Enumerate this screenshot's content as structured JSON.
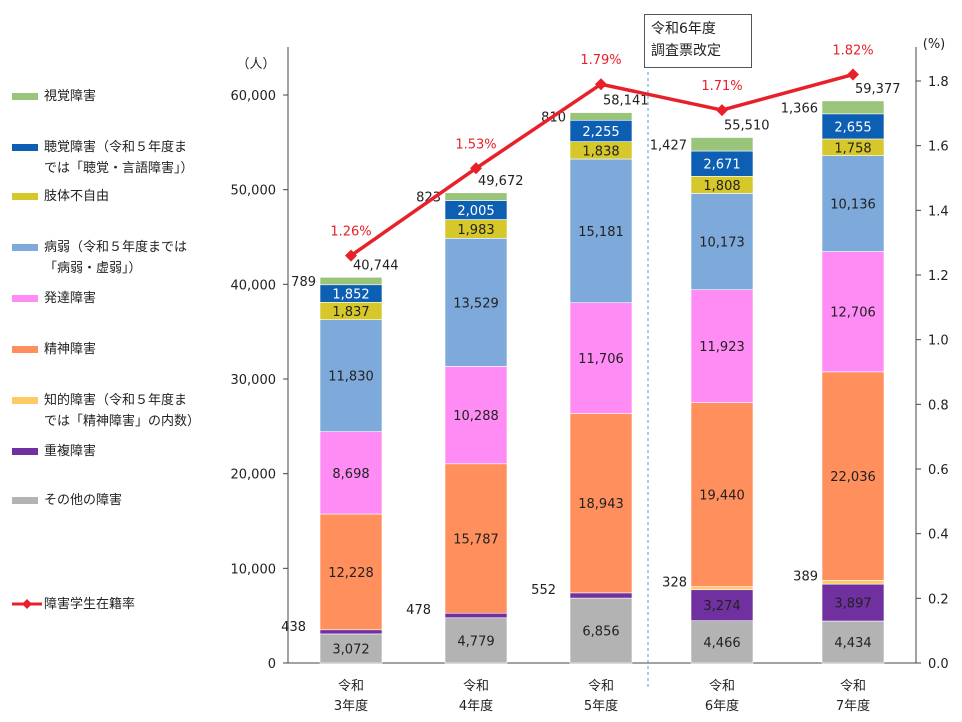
{
  "chart_data": {
    "type": "bar",
    "stacked": true,
    "categories": [
      [
        "令和",
        "3年度"
      ],
      [
        "令和",
        "4年度"
      ],
      [
        "令和",
        "5年度"
      ],
      [
        "令和",
        "6年度"
      ],
      [
        "令和",
        "7年度"
      ]
    ],
    "y_unit": "（人）",
    "y2_unit": "(%)",
    "ylim": [
      0,
      60000
    ],
    "yticks": [
      "0",
      "10,000",
      "20,000",
      "30,000",
      "40,000",
      "50,000",
      "60,000"
    ],
    "y2lim": [
      0,
      1.8
    ],
    "y2ticks": [
      "0.0",
      "0.2",
      "0.4",
      "0.6",
      "0.8",
      "1.0",
      "1.2",
      "1.4",
      "1.6",
      "1.8"
    ],
    "series": [
      {
        "name": "その他の障害",
        "color": "#b3b3b3",
        "values": [
          3072,
          4779,
          6856,
          4466,
          4434
        ],
        "labels": [
          "3,072",
          "4,779",
          "6,856",
          "4,466",
          "4,434"
        ]
      },
      {
        "name": "重複障害",
        "color": "#7030a0",
        "values": [
          438,
          478,
          552,
          3274,
          3897
        ],
        "labels": [
          "438",
          "478",
          "552",
          "3,274",
          "3,897"
        ]
      },
      {
        "name": "知的障害",
        "color": "#ffc966",
        "values": [
          0,
          0,
          0,
          328,
          389
        ],
        "labels": [
          "",
          "",
          "",
          "328",
          "389"
        ]
      },
      {
        "name": "精神障害",
        "color": "#ff8f5c",
        "values": [
          12228,
          15787,
          18943,
          19440,
          22036
        ],
        "labels": [
          "12,228",
          "15,787",
          "18,943",
          "19,440",
          "22,036"
        ]
      },
      {
        "name": "発達障害",
        "color": "#ff8cf5",
        "values": [
          8698,
          10288,
          11706,
          11923,
          12706
        ],
        "labels": [
          "8,698",
          "10,288",
          "11,706",
          "11,923",
          "12,706"
        ]
      },
      {
        "name": "病弱",
        "color": "#7eaadb",
        "values": [
          11830,
          13529,
          15181,
          10173,
          10136
        ],
        "labels": [
          "11,830",
          "13,529",
          "15,181",
          "10,173",
          "10,136"
        ]
      },
      {
        "name": "肢体不自由",
        "color": "#d6c72a",
        "values": [
          1837,
          1983,
          1838,
          1808,
          1758
        ],
        "labels": [
          "1,837",
          "1,983",
          "1,838",
          "1,808",
          "1,758"
        ]
      },
      {
        "name": "聴覚障害",
        "color": "#0d5fb3",
        "values": [
          1852,
          2005,
          2255,
          2671,
          2655
        ],
        "labels": [
          "1,852",
          "2,005",
          "2,255",
          "2,671",
          "2,655"
        ]
      },
      {
        "name": "視覚障害",
        "color": "#99c47a",
        "values": [
          789,
          823,
          810,
          1427,
          1366
        ],
        "labels": [
          "789",
          "823",
          "810",
          "1,427",
          "1,366"
        ]
      }
    ],
    "totals": [
      40744,
      49672,
      58141,
      55510,
      59377
    ],
    "total_labels": [
      "40,744",
      "49,672",
      "58,141",
      "55,510",
      "59,377"
    ],
    "line": {
      "name": "障害学生在籍率",
      "color": "#e8202a",
      "values": [
        1.26,
        1.53,
        1.79,
        1.71,
        1.82
      ],
      "labels": [
        "1.26%",
        "1.53%",
        "1.79%",
        "1.71%",
        "1.82%"
      ]
    }
  },
  "legend": [
    {
      "lines": [
        "視覚障害"
      ],
      "color": "#99c47a",
      "kind": "bar"
    },
    {
      "lines": [
        "聴覚障害（令和５年度ま",
        "では「聴覚・言語障害」）"
      ],
      "color": "#0d5fb3",
      "kind": "bar"
    },
    {
      "lines": [
        "肢体不自由"
      ],
      "color": "#d6c72a",
      "kind": "bar"
    },
    {
      "lines": [
        "病弱（令和５年度までは",
        "「病弱・虚弱」）"
      ],
      "color": "#7eaadb",
      "kind": "bar"
    },
    {
      "lines": [
        "発達障害"
      ],
      "color": "#ff8cf5",
      "kind": "bar"
    },
    {
      "lines": [
        "精神障害"
      ],
      "color": "#ff8f5c",
      "kind": "bar"
    },
    {
      "lines": [
        "知的障害（令和５年度ま",
        "では「精神障害」の内数）"
      ],
      "color": "#ffc966",
      "kind": "bar"
    },
    {
      "lines": [
        "重複障害"
      ],
      "color": "#7030a0",
      "kind": "bar"
    },
    {
      "lines": [
        "その他の障害"
      ],
      "color": "#b3b3b3",
      "kind": "bar"
    },
    {
      "lines": [
        "障害学生在籍率"
      ],
      "color": "#e8202a",
      "kind": "line"
    }
  ],
  "annotation": {
    "lines": [
      "令和6年度",
      "調査票改定"
    ]
  }
}
